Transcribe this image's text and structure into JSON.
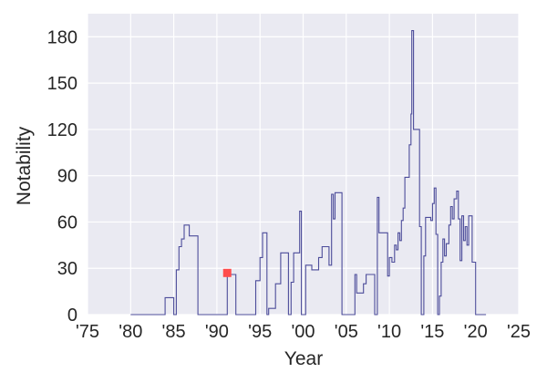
{
  "chart_data": {
    "type": "line",
    "title": "",
    "xlabel": "Year",
    "ylabel": "Notability",
    "xlim": [
      1975,
      2025
    ],
    "ylim": [
      0,
      195
    ],
    "x_ticks": [
      {
        "value": 1975,
        "label": "'75"
      },
      {
        "value": 1980,
        "label": "'80"
      },
      {
        "value": 1985,
        "label": "'85"
      },
      {
        "value": 1990,
        "label": "'90"
      },
      {
        "value": 1995,
        "label": "'95"
      },
      {
        "value": 2000,
        "label": "'00"
      },
      {
        "value": 2005,
        "label": "'05"
      },
      {
        "value": 2010,
        "label": "'10"
      },
      {
        "value": 2015,
        "label": "'15"
      },
      {
        "value": 2020,
        "label": "'20"
      },
      {
        "value": 2025,
        "label": "'25"
      }
    ],
    "y_ticks": [
      0,
      30,
      60,
      90,
      120,
      150,
      180
    ],
    "grid": true,
    "background": "#eaeaf2",
    "series": [
      {
        "color": "#4c4c9a",
        "step": true,
        "points": [
          [
            1980.0,
            0
          ],
          [
            1984.0,
            0
          ],
          [
            1984.0,
            11
          ],
          [
            1985.0,
            11
          ],
          [
            1985.0,
            0
          ],
          [
            1985.3,
            0
          ],
          [
            1985.3,
            29
          ],
          [
            1985.6,
            29
          ],
          [
            1985.6,
            44
          ],
          [
            1985.9,
            44
          ],
          [
            1985.9,
            49
          ],
          [
            1986.2,
            49
          ],
          [
            1986.2,
            58
          ],
          [
            1986.8,
            58
          ],
          [
            1986.8,
            51
          ],
          [
            1987.8,
            51
          ],
          [
            1987.8,
            0
          ],
          [
            1991.2,
            0
          ],
          [
            1991.2,
            26
          ],
          [
            1992.2,
            26
          ],
          [
            1992.2,
            0
          ],
          [
            1994.5,
            0
          ],
          [
            1994.5,
            22
          ],
          [
            1995.0,
            22
          ],
          [
            1995.0,
            37
          ],
          [
            1995.3,
            37
          ],
          [
            1995.3,
            53
          ],
          [
            1995.8,
            53
          ],
          [
            1995.8,
            0
          ],
          [
            1996.0,
            0
          ],
          [
            1996.0,
            4
          ],
          [
            1996.8,
            4
          ],
          [
            1996.8,
            20
          ],
          [
            1997.4,
            20
          ],
          [
            1997.4,
            40
          ],
          [
            1998.3,
            40
          ],
          [
            1998.3,
            0
          ],
          [
            1998.6,
            0
          ],
          [
            1998.6,
            21
          ],
          [
            1998.9,
            21
          ],
          [
            1998.9,
            40
          ],
          [
            1999.6,
            40
          ],
          [
            1999.6,
            67
          ],
          [
            1999.8,
            67
          ],
          [
            1999.8,
            0
          ],
          [
            2000.3,
            0
          ],
          [
            2000.3,
            32
          ],
          [
            2001.0,
            32
          ],
          [
            2001.0,
            29
          ],
          [
            2001.8,
            29
          ],
          [
            2001.8,
            37
          ],
          [
            2002.2,
            37
          ],
          [
            2002.2,
            44
          ],
          [
            2003.0,
            44
          ],
          [
            2003.0,
            32
          ],
          [
            2003.3,
            32
          ],
          [
            2003.3,
            78
          ],
          [
            2003.5,
            78
          ],
          [
            2003.5,
            62
          ],
          [
            2003.7,
            62
          ],
          [
            2003.7,
            79
          ],
          [
            2004.5,
            79
          ],
          [
            2004.5,
            0
          ],
          [
            2006.0,
            0
          ],
          [
            2006.0,
            26
          ],
          [
            2006.2,
            26
          ],
          [
            2006.2,
            14
          ],
          [
            2007.0,
            14
          ],
          [
            2007.0,
            20
          ],
          [
            2007.3,
            20
          ],
          [
            2007.3,
            26
          ],
          [
            2008.3,
            26
          ],
          [
            2008.3,
            0
          ],
          [
            2008.6,
            0
          ],
          [
            2008.6,
            76
          ],
          [
            2008.8,
            76
          ],
          [
            2008.8,
            53
          ],
          [
            2009.8,
            53
          ],
          [
            2009.8,
            25
          ],
          [
            2010.0,
            25
          ],
          [
            2010.0,
            37
          ],
          [
            2010.3,
            37
          ],
          [
            2010.3,
            34
          ],
          [
            2010.6,
            34
          ],
          [
            2010.6,
            45
          ],
          [
            2010.8,
            45
          ],
          [
            2010.8,
            42
          ],
          [
            2011.0,
            42
          ],
          [
            2011.0,
            53
          ],
          [
            2011.2,
            53
          ],
          [
            2011.2,
            48
          ],
          [
            2011.4,
            48
          ],
          [
            2011.4,
            61
          ],
          [
            2011.6,
            61
          ],
          [
            2011.6,
            69
          ],
          [
            2011.8,
            69
          ],
          [
            2011.8,
            89
          ],
          [
            2012.3,
            89
          ],
          [
            2012.3,
            110
          ],
          [
            2012.5,
            110
          ],
          [
            2012.5,
            130
          ],
          [
            2012.6,
            130
          ],
          [
            2012.6,
            184
          ],
          [
            2012.8,
            184
          ],
          [
            2012.8,
            120
          ],
          [
            2013.5,
            120
          ],
          [
            2013.5,
            57
          ],
          [
            2013.7,
            57
          ],
          [
            2013.7,
            0
          ],
          [
            2014.0,
            0
          ],
          [
            2014.0,
            38
          ],
          [
            2014.2,
            38
          ],
          [
            2014.2,
            63
          ],
          [
            2014.8,
            63
          ],
          [
            2014.8,
            61
          ],
          [
            2015.0,
            61
          ],
          [
            2015.0,
            72
          ],
          [
            2015.2,
            72
          ],
          [
            2015.2,
            82
          ],
          [
            2015.4,
            82
          ],
          [
            2015.4,
            52
          ],
          [
            2015.6,
            52
          ],
          [
            2015.6,
            0
          ],
          [
            2015.8,
            0
          ],
          [
            2015.8,
            12
          ],
          [
            2016.0,
            12
          ],
          [
            2016.0,
            34
          ],
          [
            2016.2,
            34
          ],
          [
            2016.2,
            49
          ],
          [
            2016.4,
            49
          ],
          [
            2016.4,
            38
          ],
          [
            2016.6,
            38
          ],
          [
            2016.6,
            46
          ],
          [
            2016.9,
            46
          ],
          [
            2016.9,
            58
          ],
          [
            2017.1,
            58
          ],
          [
            2017.1,
            70
          ],
          [
            2017.3,
            70
          ],
          [
            2017.3,
            62
          ],
          [
            2017.5,
            62
          ],
          [
            2017.5,
            75
          ],
          [
            2017.8,
            75
          ],
          [
            2017.8,
            80
          ],
          [
            2018.0,
            80
          ],
          [
            2018.0,
            62
          ],
          [
            2018.2,
            62
          ],
          [
            2018.2,
            35
          ],
          [
            2018.4,
            35
          ],
          [
            2018.4,
            64
          ],
          [
            2018.6,
            64
          ],
          [
            2018.6,
            48
          ],
          [
            2018.8,
            48
          ],
          [
            2018.8,
            57
          ],
          [
            2019.0,
            57
          ],
          [
            2019.0,
            45
          ],
          [
            2019.2,
            45
          ],
          [
            2019.2,
            64
          ],
          [
            2019.6,
            64
          ],
          [
            2019.6,
            34
          ],
          [
            2020.0,
            34
          ],
          [
            2020.0,
            0
          ],
          [
            2021.2,
            0
          ]
        ]
      }
    ],
    "marker": {
      "x": 1991.2,
      "y": 27,
      "color": "#ff4c4c",
      "shape": "square"
    }
  }
}
